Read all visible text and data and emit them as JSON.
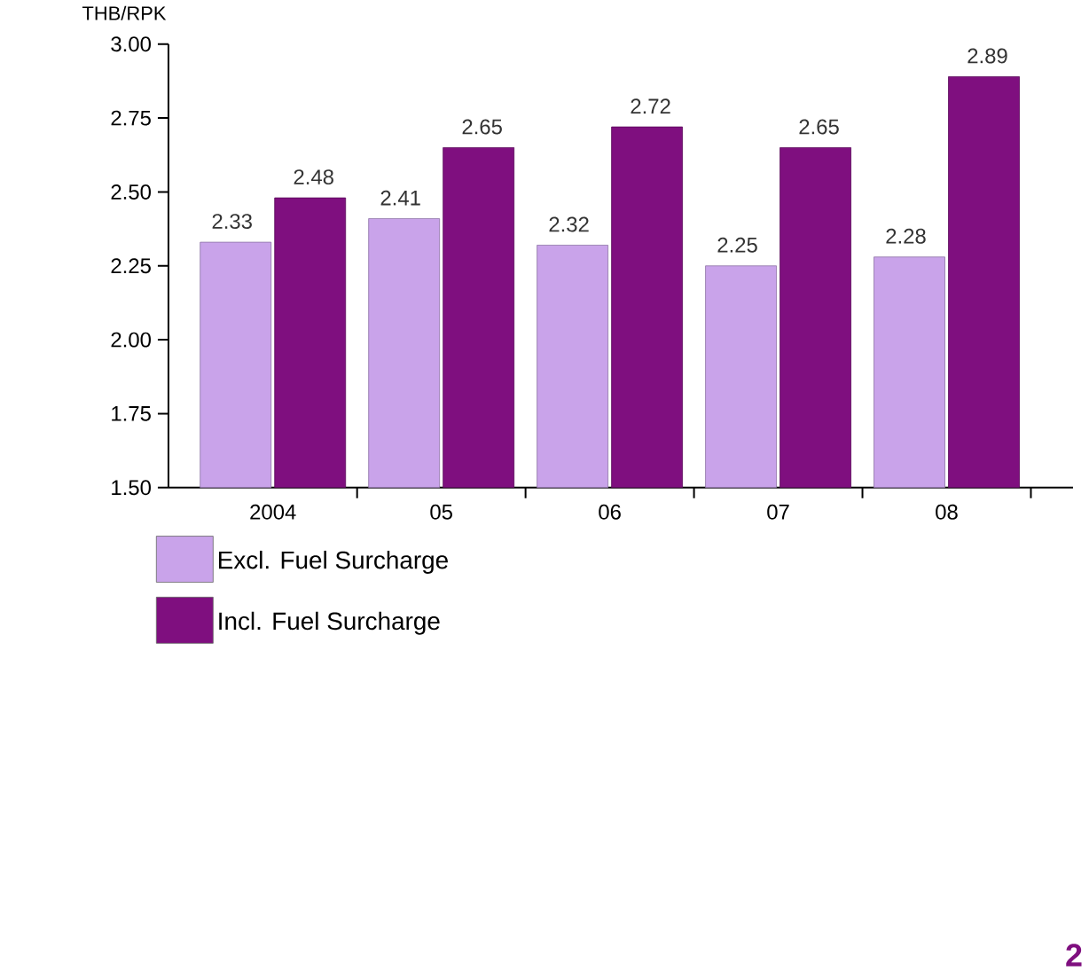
{
  "chart_data": {
    "type": "bar",
    "ylabel": "THB/RPK",
    "categories": [
      "2004",
      "05",
      "06",
      "07",
      "08"
    ],
    "series": [
      {
        "name": "Excl. Fuel Surcharge",
        "color": "#c9a3ea",
        "values": [
          2.33,
          2.41,
          2.32,
          2.25,
          2.28
        ],
        "value_labels": [
          "2.33",
          "2.41",
          "2.32",
          "2.25",
          "2.28"
        ]
      },
      {
        "name": "Incl. Fuel Surcharge",
        "color": "#7f0f7f",
        "values": [
          2.48,
          2.65,
          2.72,
          2.65,
          2.89
        ],
        "value_labels": [
          "2.48",
          "2.65",
          "2.72",
          "2.65",
          "2.89"
        ]
      }
    ],
    "ylim": [
      1.5,
      3.0
    ],
    "yticks": [
      {
        "value": 1.5,
        "label": "1.50"
      },
      {
        "value": 1.75,
        "label": "1.75"
      },
      {
        "value": 2.0,
        "label": "2.00"
      },
      {
        "value": 2.25,
        "label": "2.25"
      },
      {
        "value": 2.5,
        "label": "2.50"
      },
      {
        "value": 2.75,
        "label": "2.75"
      },
      {
        "value": 3.0,
        "label": "3.00"
      }
    ],
    "legend": "bottom left",
    "grid": false,
    "annotations": [
      "2"
    ]
  }
}
